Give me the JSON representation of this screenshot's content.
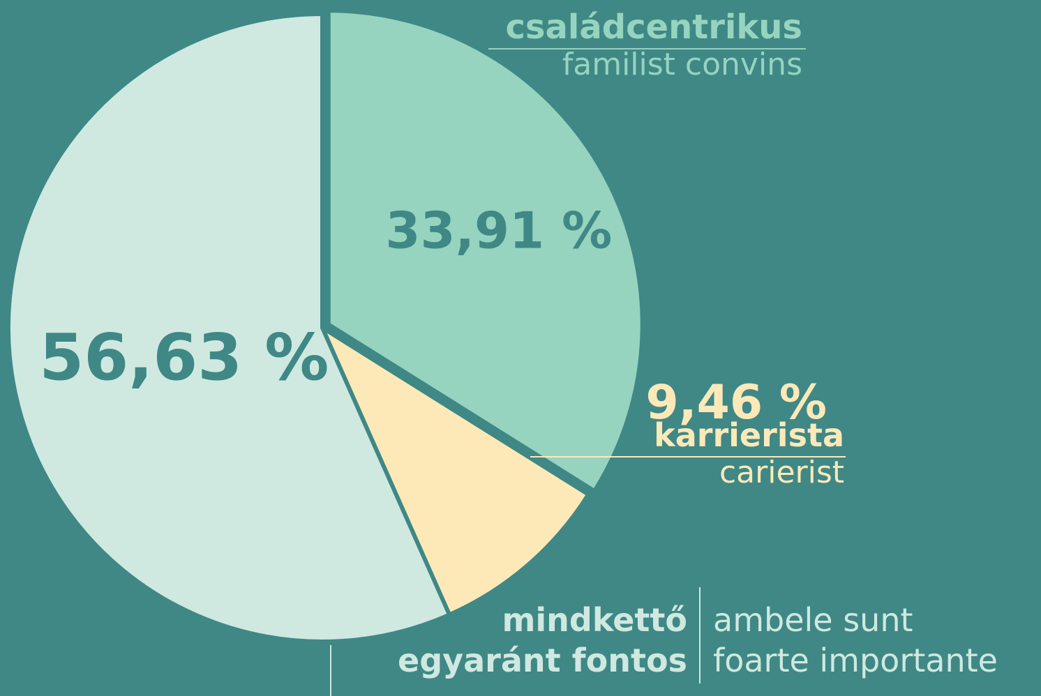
{
  "chart_data": {
    "type": "pie",
    "categories": [
      [
        "családcentrikus"
      ],
      [
        "karrierista"
      ],
      [
        "mindkettő",
        "egyaránt fontos"
      ]
    ],
    "translations": [
      [
        "familist convins"
      ],
      [
        "carierist"
      ],
      [
        "ambele sunt",
        "foarte importante"
      ]
    ],
    "values": [
      33.91,
      9.46,
      56.63
    ],
    "value_labels": [
      "33,91 %",
      "9,46 %",
      "56,63 %"
    ],
    "colors": [
      "#96d4bf",
      "#fde9b8",
      "#cfe9e0"
    ]
  }
}
